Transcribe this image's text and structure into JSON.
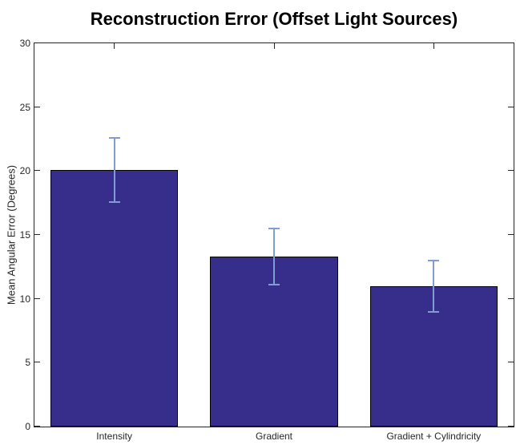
{
  "chart_data": {
    "type": "bar",
    "title": "Reconstruction Error (Offset Light Sources)",
    "xlabel": "",
    "ylabel": "Mean Angular Error (Degrees)",
    "categories": [
      "Intensity",
      "Gradient",
      "Gradient + Cylindricity"
    ],
    "values": [
      20.1,
      13.3,
      11.0
    ],
    "errors": [
      2.5,
      2.2,
      2.0
    ],
    "ylim": [
      0,
      30
    ],
    "yticks": [
      0,
      5,
      10,
      15,
      20,
      25,
      30
    ],
    "grid": false,
    "bar_width_fraction": 0.8,
    "legend_position": "none",
    "colors": {
      "bar_fill": "#372E8C",
      "bar_edge": "#000000",
      "error_bar": "#7F9DD3",
      "axis": "#262626",
      "title_text": "#000000",
      "background": "#FFFFFF"
    }
  }
}
